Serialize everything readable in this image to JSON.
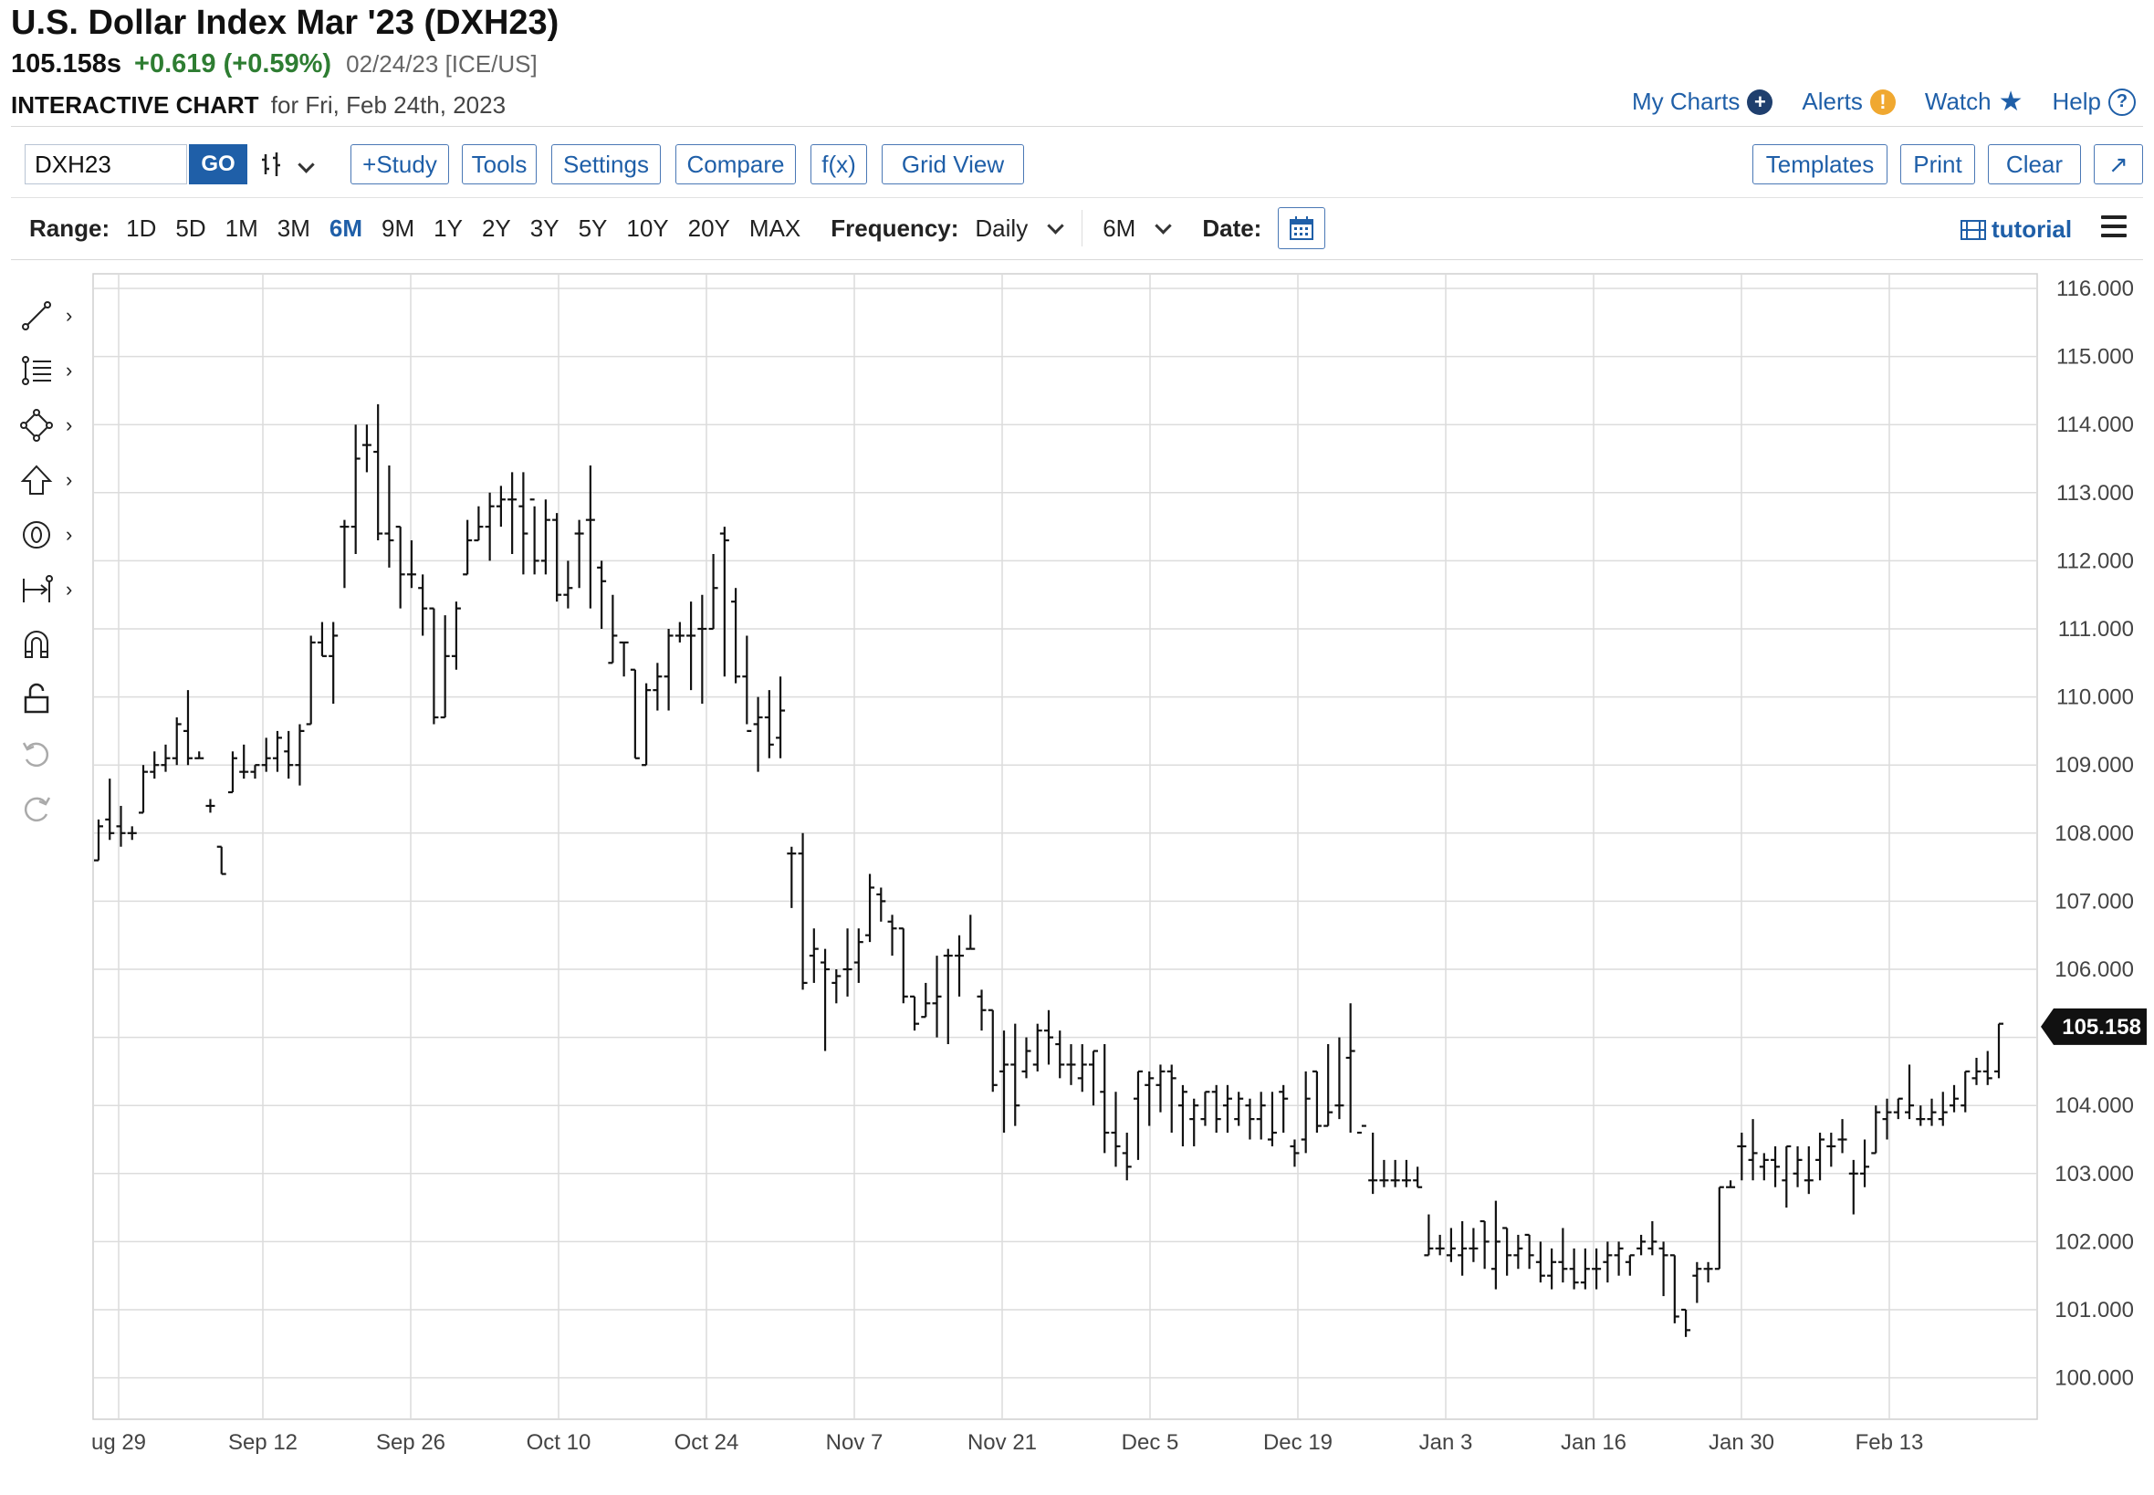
{
  "header": {
    "title": "U.S. Dollar Index Mar '23 (DXH23)",
    "price": "105.158s",
    "change": "+0.619 (+0.59%)",
    "date_exchange": "02/24/23 [ICE/US]",
    "chart_label": "INTERACTIVE CHART",
    "chart_for": "for Fri, Feb 24th, 2023"
  },
  "toplinks": {
    "my_charts": "My Charts",
    "alerts": "Alerts",
    "watch": "Watch",
    "help": "Help"
  },
  "toolbar": {
    "symbol": "DXH23",
    "go": "GO",
    "study": "+Study",
    "tools": "Tools",
    "settings": "Settings",
    "compare": "Compare",
    "fx": "f(x)",
    "grid_view": "Grid View",
    "templates": "Templates",
    "print": "Print",
    "clear": "Clear",
    "expand": "↗"
  },
  "range": {
    "label": "Range:",
    "options": [
      "1D",
      "5D",
      "1M",
      "3M",
      "6M",
      "9M",
      "1Y",
      "2Y",
      "3Y",
      "5Y",
      "10Y",
      "20Y",
      "MAX"
    ],
    "active": "6M",
    "frequency_label": "Frequency:",
    "frequency_value": "Daily",
    "period_value": "6M",
    "date_label": "Date:",
    "tutorial": "tutorial"
  },
  "colors": {
    "accent": "#1f5fa8",
    "positive": "#2e7d32",
    "bar": "#111111",
    "grid": "#dcdcdc",
    "tag": "#111111"
  },
  "chart_data": {
    "type": "ohlc",
    "y_range": [
      99.5,
      116.2
    ],
    "y_ticks": [
      "116.000",
      "115.000",
      "114.000",
      "113.000",
      "112.000",
      "111.000",
      "110.000",
      "109.000",
      "108.000",
      "107.000",
      "106.000",
      "105.000",
      "104.000",
      "103.000",
      "102.000",
      "101.000",
      "100.000"
    ],
    "y_tick_values": [
      116,
      115,
      114,
      113,
      112,
      111,
      110,
      109,
      108,
      107,
      106,
      105,
      104,
      103,
      102,
      101,
      100
    ],
    "x_labels": [
      "ug 29",
      "Sep 12",
      "Sep 26",
      "Oct 10",
      "Oct 24",
      "Nov 7",
      "Nov 21",
      "Dec 5",
      "Dec 19",
      "Jan 3",
      "Jan 16",
      "Jan 30",
      "Feb 13"
    ],
    "last_value": "105.158",
    "bars": [
      [
        107.6,
        108.2,
        107.6,
        108.1
      ],
      [
        108.2,
        108.8,
        107.9,
        108.0
      ],
      [
        108.1,
        108.4,
        107.8,
        108.0
      ],
      [
        108.0,
        108.1,
        107.9,
        108.0
      ],
      [
        108.3,
        109.0,
        108.3,
        108.9
      ],
      [
        108.9,
        109.2,
        108.8,
        109.0
      ],
      [
        109.0,
        109.3,
        108.9,
        109.1
      ],
      [
        109.1,
        109.7,
        109.0,
        109.6
      ],
      [
        109.5,
        110.1,
        109.0,
        109.1
      ],
      [
        109.1,
        109.2,
        109.1,
        109.1
      ],
      [
        108.4,
        108.5,
        108.3,
        108.4
      ],
      [
        107.8,
        107.8,
        107.4,
        107.4
      ],
      [
        108.6,
        109.2,
        108.6,
        109.1
      ],
      [
        108.9,
        109.3,
        108.8,
        108.9
      ],
      [
        108.9,
        109.0,
        108.8,
        109.0
      ],
      [
        109.0,
        109.4,
        108.9,
        109.1
      ],
      [
        109.1,
        109.5,
        108.9,
        109.4
      ],
      [
        109.2,
        109.5,
        108.8,
        109.0
      ],
      [
        109.0,
        109.6,
        108.7,
        109.5
      ],
      [
        109.6,
        110.9,
        109.6,
        110.8
      ],
      [
        110.8,
        111.1,
        110.6,
        110.6
      ],
      [
        110.6,
        111.1,
        109.9,
        110.9
      ],
      [
        112.5,
        112.6,
        111.6,
        112.5
      ],
      [
        112.5,
        114.0,
        112.1,
        113.5
      ],
      [
        113.7,
        114.0,
        113.3,
        113.7
      ],
      [
        113.6,
        114.3,
        112.3,
        112.4
      ],
      [
        112.4,
        113.4,
        111.9,
        112.3
      ],
      [
        112.5,
        112.5,
        111.3,
        111.8
      ],
      [
        111.8,
        112.3,
        111.6,
        111.8
      ],
      [
        111.6,
        111.8,
        110.9,
        111.3
      ],
      [
        111.3,
        111.3,
        109.6,
        109.7
      ],
      [
        109.7,
        111.2,
        109.7,
        110.6
      ],
      [
        110.6,
        111.4,
        110.4,
        111.3
      ],
      [
        111.8,
        112.6,
        111.8,
        112.3
      ],
      [
        112.3,
        112.8,
        112.3,
        112.5
      ],
      [
        112.5,
        113.0,
        112.0,
        112.8
      ],
      [
        112.8,
        113.1,
        112.5,
        112.9
      ],
      [
        112.9,
        113.3,
        112.1,
        112.9
      ],
      [
        112.8,
        113.3,
        111.8,
        112.4
      ],
      [
        112.9,
        112.8,
        111.8,
        112.0
      ],
      [
        112.0,
        112.9,
        111.8,
        112.6
      ],
      [
        112.6,
        112.7,
        111.4,
        111.5
      ],
      [
        111.5,
        112.0,
        111.3,
        111.6
      ],
      [
        112.4,
        112.6,
        111.6,
        112.4
      ],
      [
        112.6,
        113.4,
        111.3,
        112.6
      ],
      [
        111.9,
        112.0,
        111.0,
        111.7
      ],
      [
        110.5,
        111.5,
        110.5,
        110.9
      ],
      [
        110.8,
        110.8,
        110.3,
        110.8
      ],
      [
        110.4,
        110.4,
        109.1,
        109.1
      ],
      [
        109.0,
        110.2,
        109.0,
        110.1
      ],
      [
        110.1,
        110.5,
        109.8,
        110.3
      ],
      [
        110.3,
        111.0,
        109.8,
        110.9
      ],
      [
        110.9,
        111.1,
        110.8,
        110.9
      ],
      [
        110.9,
        111.4,
        110.1,
        110.9
      ],
      [
        111.0,
        111.5,
        109.9,
        111.0
      ],
      [
        111.0,
        112.1,
        111.0,
        111.6
      ],
      [
        112.4,
        112.5,
        110.3,
        112.3
      ],
      [
        111.4,
        111.6,
        110.2,
        110.3
      ],
      [
        110.3,
        110.9,
        109.6,
        109.5
      ],
      [
        109.6,
        110.0,
        108.9,
        109.7
      ],
      [
        109.7,
        110.1,
        109.1,
        109.3
      ],
      [
        109.4,
        110.3,
        109.1,
        109.8
      ],
      [
        107.7,
        107.8,
        106.9,
        107.7
      ],
      [
        107.7,
        108.0,
        105.7,
        105.8
      ],
      [
        106.2,
        106.6,
        105.8,
        106.3
      ],
      [
        106.1,
        106.3,
        104.8,
        106.0
      ],
      [
        105.8,
        106.0,
        105.5,
        105.9
      ],
      [
        106.0,
        106.6,
        105.6,
        106.0
      ],
      [
        106.1,
        106.6,
        105.8,
        106.4
      ],
      [
        106.5,
        107.4,
        106.4,
        107.2
      ],
      [
        107.1,
        107.2,
        106.7,
        107.0
      ],
      [
        106.7,
        106.8,
        106.2,
        106.6
      ],
      [
        106.6,
        106.6,
        105.5,
        105.6
      ],
      [
        105.6,
        105.6,
        105.1,
        105.2
      ],
      [
        105.3,
        105.8,
        105.3,
        105.5
      ],
      [
        105.5,
        106.2,
        105.0,
        105.6
      ],
      [
        106.2,
        106.3,
        104.9,
        106.2
      ],
      [
        106.2,
        106.5,
        105.6,
        106.2
      ],
      [
        106.3,
        106.8,
        106.3,
        106.3
      ],
      [
        105.6,
        105.7,
        105.1,
        105.4
      ],
      [
        105.4,
        105.4,
        104.2,
        104.3
      ],
      [
        104.5,
        105.1,
        103.6,
        104.6
      ],
      [
        104.6,
        105.2,
        103.7,
        104.0
      ],
      [
        104.5,
        105.0,
        104.4,
        104.8
      ],
      [
        104.6,
        105.2,
        104.5,
        105.1
      ],
      [
        105.1,
        105.4,
        104.6,
        105.0
      ],
      [
        104.9,
        105.1,
        104.4,
        104.6
      ],
      [
        104.6,
        104.9,
        104.3,
        104.6
      ],
      [
        104.4,
        104.9,
        104.2,
        104.6
      ],
      [
        104.6,
        104.8,
        104.0,
        104.8
      ],
      [
        104.2,
        104.9,
        103.3,
        103.6
      ],
      [
        103.6,
        104.2,
        103.1,
        103.4
      ],
      [
        103.3,
        103.6,
        102.9,
        103.1
      ],
      [
        104.1,
        104.5,
        103.2,
        104.5
      ],
      [
        104.3,
        104.5,
        103.7,
        104.4
      ],
      [
        104.3,
        104.6,
        103.9,
        104.5
      ],
      [
        104.5,
        104.6,
        103.6,
        104.4
      ],
      [
        104.0,
        104.3,
        103.4,
        104.2
      ],
      [
        103.8,
        104.1,
        103.4,
        104.0
      ],
      [
        103.8,
        104.2,
        103.7,
        104.2
      ],
      [
        104.2,
        104.3,
        103.6,
        103.8
      ],
      [
        104.0,
        104.3,
        103.6,
        104.1
      ],
      [
        103.8,
        104.2,
        103.7,
        104.1
      ],
      [
        104.0,
        104.1,
        103.5,
        103.8
      ],
      [
        103.8,
        104.2,
        103.5,
        104.0
      ],
      [
        103.5,
        104.2,
        103.4,
        103.6
      ],
      [
        104.2,
        104.3,
        103.6,
        104.1
      ],
      [
        103.4,
        103.5,
        103.1,
        103.3
      ],
      [
        103.5,
        104.5,
        103.3,
        104.1
      ],
      [
        104.5,
        104.5,
        103.6,
        103.7
      ],
      [
        103.7,
        104.9,
        103.7,
        103.9
      ],
      [
        104.0,
        105.0,
        103.8,
        104.0
      ],
      [
        104.7,
        105.5,
        103.6,
        104.8
      ],
      [
        103.6,
        103.6,
        103.6,
        103.7
      ],
      [
        102.9,
        103.6,
        102.7,
        102.9
      ],
      [
        102.9,
        103.2,
        102.8,
        102.9
      ],
      [
        102.9,
        103.2,
        102.8,
        102.9
      ],
      [
        102.9,
        103.2,
        102.8,
        102.9
      ],
      [
        102.9,
        103.1,
        102.8,
        102.8
      ],
      [
        101.8,
        102.4,
        101.8,
        101.9
      ],
      [
        101.9,
        102.1,
        101.8,
        101.9
      ],
      [
        101.8,
        102.2,
        101.7,
        101.9
      ],
      [
        101.8,
        102.3,
        101.5,
        101.9
      ],
      [
        101.9,
        102.2,
        101.7,
        101.9
      ],
      [
        102.3,
        102.3,
        101.6,
        102.0
      ],
      [
        101.6,
        102.6,
        101.3,
        102.0
      ],
      [
        102.2,
        102.2,
        101.5,
        101.8
      ],
      [
        101.8,
        102.1,
        101.6,
        101.9
      ],
      [
        102.1,
        102.1,
        101.6,
        101.8
      ],
      [
        101.7,
        102.0,
        101.4,
        101.5
      ],
      [
        101.5,
        101.9,
        101.3,
        101.7
      ],
      [
        101.7,
        102.2,
        101.4,
        101.6
      ],
      [
        101.6,
        101.9,
        101.3,
        101.4
      ],
      [
        101.4,
        101.9,
        101.3,
        101.6
      ],
      [
        101.6,
        101.9,
        101.3,
        101.6
      ],
      [
        101.7,
        102.0,
        101.4,
        101.8
      ],
      [
        101.8,
        102.0,
        101.5,
        101.9
      ],
      [
        101.7,
        101.8,
        101.5,
        101.8
      ],
      [
        101.9,
        102.1,
        101.8,
        102.0
      ],
      [
        101.9,
        102.3,
        101.8,
        102.0
      ],
      [
        101.9,
        102.0,
        101.2,
        101.8
      ],
      [
        101.8,
        101.8,
        100.8,
        100.9
      ],
      [
        101.0,
        101.0,
        100.6,
        100.7
      ],
      [
        101.5,
        101.7,
        101.1,
        101.6
      ],
      [
        101.6,
        101.7,
        101.4,
        101.6
      ],
      [
        101.6,
        102.8,
        101.6,
        102.8
      ],
      [
        102.8,
        102.9,
        102.8,
        102.8
      ],
      [
        103.4,
        103.6,
        102.9,
        103.4
      ],
      [
        103.2,
        103.8,
        102.9,
        103.3
      ],
      [
        103.1,
        103.3,
        102.9,
        103.2
      ],
      [
        103.2,
        103.4,
        102.8,
        103.1
      ],
      [
        102.9,
        103.4,
        102.5,
        103.4
      ],
      [
        103.0,
        103.4,
        102.8,
        103.2
      ],
      [
        102.9,
        103.4,
        102.7,
        102.9
      ],
      [
        103.2,
        103.6,
        102.9,
        103.5
      ],
      [
        103.4,
        103.6,
        103.1,
        103.4
      ],
      [
        103.5,
        103.8,
        103.3,
        103.5
      ],
      [
        103.0,
        103.2,
        102.4,
        103.0
      ],
      [
        103.0,
        103.5,
        102.8,
        103.1
      ],
      [
        103.3,
        104.0,
        103.3,
        103.9
      ],
      [
        103.8,
        104.1,
        103.5,
        103.9
      ],
      [
        103.9,
        104.1,
        103.8,
        104.1
      ],
      [
        103.9,
        104.6,
        103.8,
        104.0
      ],
      [
        103.8,
        104.0,
        103.7,
        103.8
      ],
      [
        103.8,
        104.1,
        103.7,
        103.9
      ],
      [
        103.8,
        104.2,
        103.7,
        103.9
      ],
      [
        104.0,
        104.3,
        103.9,
        104.1
      ],
      [
        104.0,
        104.5,
        103.9,
        104.5
      ],
      [
        104.4,
        104.7,
        104.3,
        104.5
      ],
      [
        104.5,
        104.8,
        104.3,
        104.4
      ],
      [
        104.5,
        105.2,
        104.4,
        105.2
      ]
    ]
  }
}
